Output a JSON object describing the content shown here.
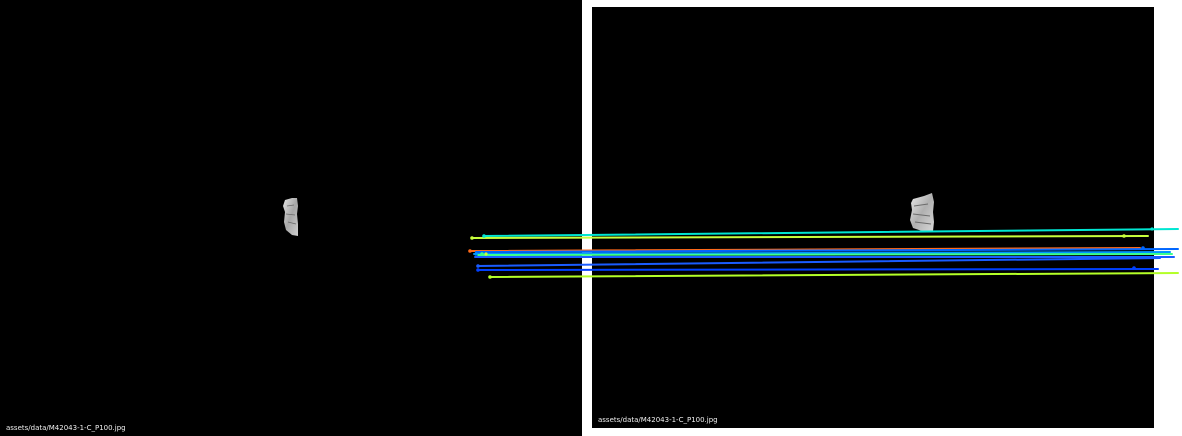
{
  "left_panel": {
    "caption": "assets/data/M42043-1-C_P100.jpg"
  },
  "right_panel": {
    "caption": "assets/data/M42043-1-C_P100.jpg"
  },
  "colors": {
    "background_gap": "#ffffff",
    "panel_background": "#000000",
    "specimen_light": "#d8d8d8",
    "specimen_dark": "#8a8a8a"
  },
  "match_line_colors": [
    "#00e6d2",
    "#c8ff3c",
    "#ff6a1a",
    "#0066ff",
    "#0096ff",
    "#1a5cff",
    "#0040ff",
    "#3cff8c",
    "#b4ff28"
  ]
}
